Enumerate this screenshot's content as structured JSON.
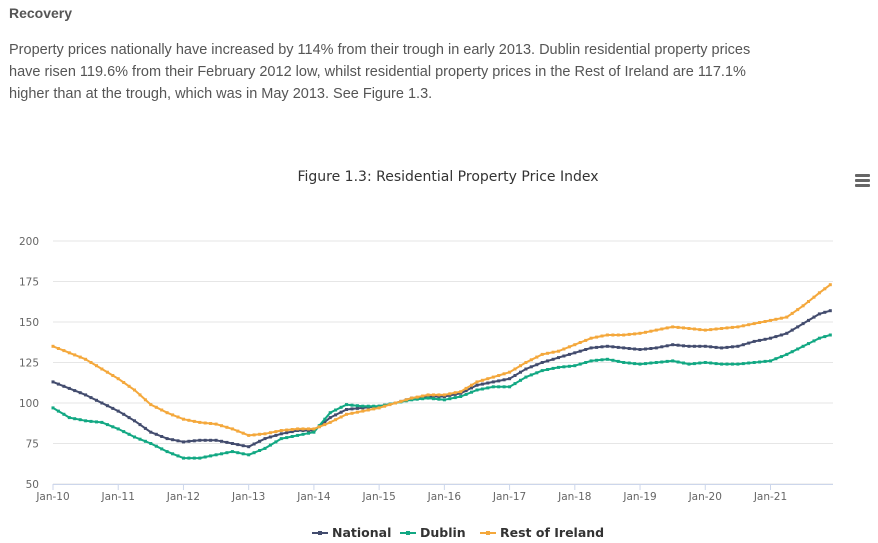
{
  "section": {
    "heading": "Recovery",
    "paragraph_lines": [
      "Property prices nationally have increased by 114% from their trough in early 2013. Dublin residential property prices",
      "have risen 119.6% from their February 2012 low, whilst residential property prices in the Rest of Ireland are 117.1%",
      "higher than at the trough, which was in May 2013. See Figure 1.3."
    ]
  },
  "chart_data": {
    "type": "line",
    "title": "Figure 1.3: Residential Property Price Index",
    "xlabel": "",
    "ylabel": "",
    "ylim": [
      50,
      200
    ],
    "yticks": [
      50,
      75,
      100,
      125,
      150,
      175,
      200
    ],
    "xticks": [
      "Jan-10",
      "Jan-11",
      "Jan-12",
      "Jan-13",
      "Jan-14",
      "Jan-15",
      "Jan-16",
      "Jan-17",
      "Jan-18",
      "Jan-19",
      "Jan-20",
      "Jan-21"
    ],
    "x_start": "Jan-10",
    "x_frequency": "monthly",
    "grid": true,
    "legend_position": "bottom",
    "series": [
      {
        "name": "National",
        "color": "#434c6e",
        "keypoints": [
          [
            0,
            113
          ],
          [
            3,
            109
          ],
          [
            6,
            105
          ],
          [
            9,
            100
          ],
          [
            12,
            95
          ],
          [
            15,
            89
          ],
          [
            18,
            82
          ],
          [
            21,
            78
          ],
          [
            24,
            76
          ],
          [
            27,
            77
          ],
          [
            30,
            77
          ],
          [
            33,
            75
          ],
          [
            36,
            73
          ],
          [
            39,
            78
          ],
          [
            42,
            81
          ],
          [
            45,
            83
          ],
          [
            48,
            83
          ],
          [
            51,
            91
          ],
          [
            54,
            96
          ],
          [
            57,
            97
          ],
          [
            60,
            98
          ],
          [
            63,
            100
          ],
          [
            66,
            103
          ],
          [
            69,
            104
          ],
          [
            72,
            104
          ],
          [
            75,
            106
          ],
          [
            78,
            111
          ],
          [
            81,
            113
          ],
          [
            84,
            115
          ],
          [
            87,
            121
          ],
          [
            90,
            125
          ],
          [
            93,
            128
          ],
          [
            96,
            131
          ],
          [
            99,
            134
          ],
          [
            102,
            135
          ],
          [
            105,
            134
          ],
          [
            108,
            133
          ],
          [
            111,
            134
          ],
          [
            114,
            136
          ],
          [
            117,
            135
          ],
          [
            120,
            135
          ],
          [
            123,
            134
          ],
          [
            126,
            135
          ],
          [
            129,
            138
          ],
          [
            132,
            140
          ],
          [
            135,
            143
          ],
          [
            138,
            149
          ],
          [
            141,
            155
          ],
          [
            143,
            157
          ]
        ]
      },
      {
        "name": "Dublin",
        "color": "#12a883",
        "keypoints": [
          [
            0,
            97
          ],
          [
            3,
            91
          ],
          [
            6,
            89
          ],
          [
            9,
            88
          ],
          [
            12,
            84
          ],
          [
            15,
            79
          ],
          [
            18,
            75
          ],
          [
            21,
            70
          ],
          [
            24,
            66
          ],
          [
            27,
            66
          ],
          [
            30,
            68
          ],
          [
            33,
            70
          ],
          [
            36,
            68
          ],
          [
            39,
            72
          ],
          [
            42,
            78
          ],
          [
            45,
            80
          ],
          [
            48,
            82
          ],
          [
            51,
            94
          ],
          [
            54,
            99
          ],
          [
            57,
            98
          ],
          [
            60,
            98
          ],
          [
            63,
            100
          ],
          [
            66,
            102
          ],
          [
            69,
            103
          ],
          [
            72,
            102
          ],
          [
            75,
            104
          ],
          [
            78,
            108
          ],
          [
            81,
            110
          ],
          [
            84,
            110
          ],
          [
            87,
            116
          ],
          [
            90,
            120
          ],
          [
            93,
            122
          ],
          [
            96,
            123
          ],
          [
            99,
            126
          ],
          [
            102,
            127
          ],
          [
            105,
            125
          ],
          [
            108,
            124
          ],
          [
            111,
            125
          ],
          [
            114,
            126
          ],
          [
            117,
            124
          ],
          [
            120,
            125
          ],
          [
            123,
            124
          ],
          [
            126,
            124
          ],
          [
            129,
            125
          ],
          [
            132,
            126
          ],
          [
            135,
            130
          ],
          [
            138,
            135
          ],
          [
            141,
            140
          ],
          [
            143,
            142
          ]
        ]
      },
      {
        "name": "Rest of Ireland",
        "color": "#f4a83c",
        "keypoints": [
          [
            0,
            135
          ],
          [
            3,
            131
          ],
          [
            6,
            127
          ],
          [
            9,
            121
          ],
          [
            12,
            115
          ],
          [
            15,
            108
          ],
          [
            18,
            99
          ],
          [
            21,
            94
          ],
          [
            24,
            90
          ],
          [
            27,
            88
          ],
          [
            30,
            87
          ],
          [
            33,
            84
          ],
          [
            36,
            80
          ],
          [
            39,
            81
          ],
          [
            42,
            83
          ],
          [
            45,
            84
          ],
          [
            48,
            84
          ],
          [
            51,
            88
          ],
          [
            54,
            93
          ],
          [
            57,
            95
          ],
          [
            60,
            97
          ],
          [
            63,
            100
          ],
          [
            66,
            103
          ],
          [
            69,
            105
          ],
          [
            72,
            105
          ],
          [
            75,
            107
          ],
          [
            78,
            113
          ],
          [
            81,
            116
          ],
          [
            84,
            119
          ],
          [
            87,
            125
          ],
          [
            90,
            130
          ],
          [
            93,
            132
          ],
          [
            96,
            136
          ],
          [
            99,
            140
          ],
          [
            102,
            142
          ],
          [
            105,
            142
          ],
          [
            108,
            143
          ],
          [
            111,
            145
          ],
          [
            114,
            147
          ],
          [
            117,
            146
          ],
          [
            120,
            145
          ],
          [
            123,
            146
          ],
          [
            126,
            147
          ],
          [
            129,
            149
          ],
          [
            132,
            151
          ],
          [
            135,
            153
          ],
          [
            138,
            160
          ],
          [
            141,
            168
          ],
          [
            143,
            173
          ]
        ]
      }
    ]
  }
}
